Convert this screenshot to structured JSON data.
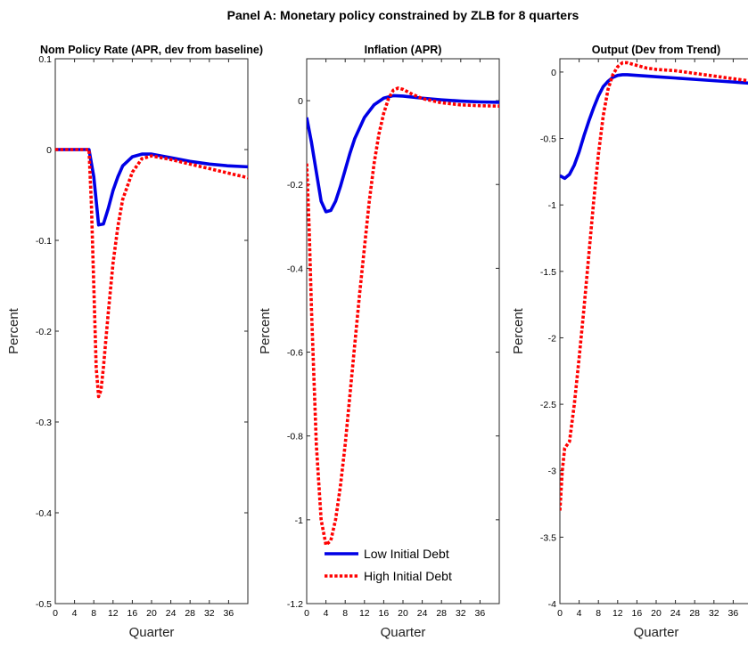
{
  "figure_title": "Panel A: Monetary policy constrained by ZLB for 8 quarters",
  "colors": {
    "low_debt": "#0000e6",
    "high_debt": "#ff0000"
  },
  "legend": {
    "items": [
      "Low Initial Debt",
      "High Initial Debt"
    ],
    "placement": "lower-center of middle panel"
  },
  "chart_data": [
    {
      "type": "line",
      "title": "Nom Policy Rate (APR, dev from baseline)",
      "xlabel": "Quarter",
      "ylabel": "Percent",
      "xlim": [
        0,
        40
      ],
      "ylim": [
        -0.5,
        0.1
      ],
      "xticks": [
        0,
        4,
        8,
        12,
        16,
        20,
        24,
        28,
        32,
        36
      ],
      "yticks": [
        -0.5,
        -0.4,
        -0.3,
        -0.2,
        -0.1,
        0,
        0.1
      ],
      "grid": false,
      "series": [
        {
          "name": "Low Initial Debt",
          "style": "solid",
          "x": [
            0,
            7,
            8,
            9,
            10,
            11,
            12,
            13,
            14,
            16,
            18,
            20,
            24,
            28,
            32,
            36,
            40
          ],
          "y": [
            0,
            0,
            -0.03,
            -0.083,
            -0.082,
            -0.065,
            -0.045,
            -0.03,
            -0.018,
            -0.008,
            -0.005,
            -0.005,
            -0.009,
            -0.013,
            -0.016,
            -0.018,
            -0.019
          ]
        },
        {
          "name": "High Initial Debt",
          "style": "dotted",
          "x": [
            0,
            7,
            7.5,
            8,
            8.5,
            9,
            9.5,
            10,
            11,
            12,
            13,
            14,
            16,
            18,
            20,
            24,
            28,
            32,
            36,
            40
          ],
          "y": [
            0,
            0,
            -0.06,
            -0.15,
            -0.24,
            -0.272,
            -0.265,
            -0.24,
            -0.18,
            -0.125,
            -0.085,
            -0.055,
            -0.025,
            -0.01,
            -0.007,
            -0.011,
            -0.016,
            -0.021,
            -0.026,
            -0.031
          ]
        }
      ]
    },
    {
      "type": "line",
      "title": "Inflation (APR)",
      "xlabel": "Quarter",
      "ylabel": "Percent",
      "xlim": [
        0,
        40
      ],
      "ylim": [
        -1.2,
        0.1
      ],
      "xticks": [
        0,
        4,
        8,
        12,
        16,
        20,
        24,
        28,
        32,
        36
      ],
      "yticks": [
        -1.2,
        -1,
        -0.8,
        -0.6,
        -0.4,
        -0.2,
        0
      ],
      "grid": false,
      "series": [
        {
          "name": "Low Initial Debt",
          "style": "solid",
          "x": [
            0,
            1,
            2,
            3,
            4,
            5,
            6,
            7,
            8,
            9,
            10,
            12,
            14,
            16,
            18,
            20,
            24,
            28,
            32,
            36,
            40
          ],
          "y": [
            -0.04,
            -0.1,
            -0.17,
            -0.24,
            -0.265,
            -0.262,
            -0.24,
            -0.205,
            -0.165,
            -0.125,
            -0.09,
            -0.04,
            -0.01,
            0.006,
            0.012,
            0.011,
            0.006,
            0.002,
            -0.001,
            -0.003,
            -0.004
          ]
        },
        {
          "name": "High Initial Debt",
          "style": "dotted",
          "x": [
            0,
            0.5,
            1,
            2,
            3,
            4,
            5,
            6,
            7,
            8,
            9,
            10,
            11,
            12,
            13,
            14,
            15,
            16,
            17,
            18,
            19,
            20,
            22,
            24,
            28,
            32,
            36,
            40
          ],
          "y": [
            -0.15,
            -0.3,
            -0.5,
            -0.82,
            -1.0,
            -1.06,
            -1.05,
            -1.0,
            -0.92,
            -0.82,
            -0.7,
            -0.58,
            -0.46,
            -0.35,
            -0.24,
            -0.15,
            -0.08,
            -0.03,
            0.005,
            0.025,
            0.03,
            0.027,
            0.015,
            0.005,
            -0.005,
            -0.01,
            -0.012,
            -0.013
          ]
        }
      ]
    },
    {
      "type": "line",
      "title": "Output (Dev from Trend)",
      "xlabel": "Quarter",
      "ylabel": "Percent",
      "xlim": [
        0,
        40
      ],
      "ylim": [
        -4,
        0.1
      ],
      "xticks": [
        0,
        4,
        8,
        12,
        16,
        20,
        24,
        28,
        32,
        36
      ],
      "yticks": [
        -4,
        -3.5,
        -3,
        -2.5,
        -2,
        -1.5,
        -1,
        -0.5,
        0
      ],
      "grid": false,
      "series": [
        {
          "name": "Low Initial Debt",
          "style": "solid",
          "x": [
            0,
            1,
            2,
            3,
            4,
            5,
            6,
            7,
            8,
            9,
            10,
            11,
            12,
            13,
            14,
            16,
            18,
            20,
            24,
            28,
            32,
            36,
            40
          ],
          "y": [
            -0.78,
            -0.8,
            -0.77,
            -0.7,
            -0.6,
            -0.48,
            -0.37,
            -0.27,
            -0.18,
            -0.11,
            -0.07,
            -0.04,
            -0.025,
            -0.02,
            -0.02,
            -0.025,
            -0.03,
            -0.035,
            -0.045,
            -0.055,
            -0.065,
            -0.075,
            -0.085
          ]
        },
        {
          "name": "High Initial Debt",
          "style": "dotted",
          "x": [
            0,
            0.5,
            1,
            2,
            3,
            4,
            5,
            6,
            7,
            8,
            9,
            10,
            11,
            12,
            13,
            14,
            15,
            16,
            18,
            20,
            24,
            28,
            32,
            36,
            40
          ],
          "y": [
            -3.3,
            -3.0,
            -2.83,
            -2.78,
            -2.5,
            -2.15,
            -1.78,
            -1.38,
            -0.98,
            -0.62,
            -0.33,
            -0.13,
            -0.02,
            0.04,
            0.07,
            0.07,
            0.06,
            0.05,
            0.03,
            0.02,
            0.01,
            -0.01,
            -0.03,
            -0.05,
            -0.07
          ]
        }
      ]
    }
  ]
}
